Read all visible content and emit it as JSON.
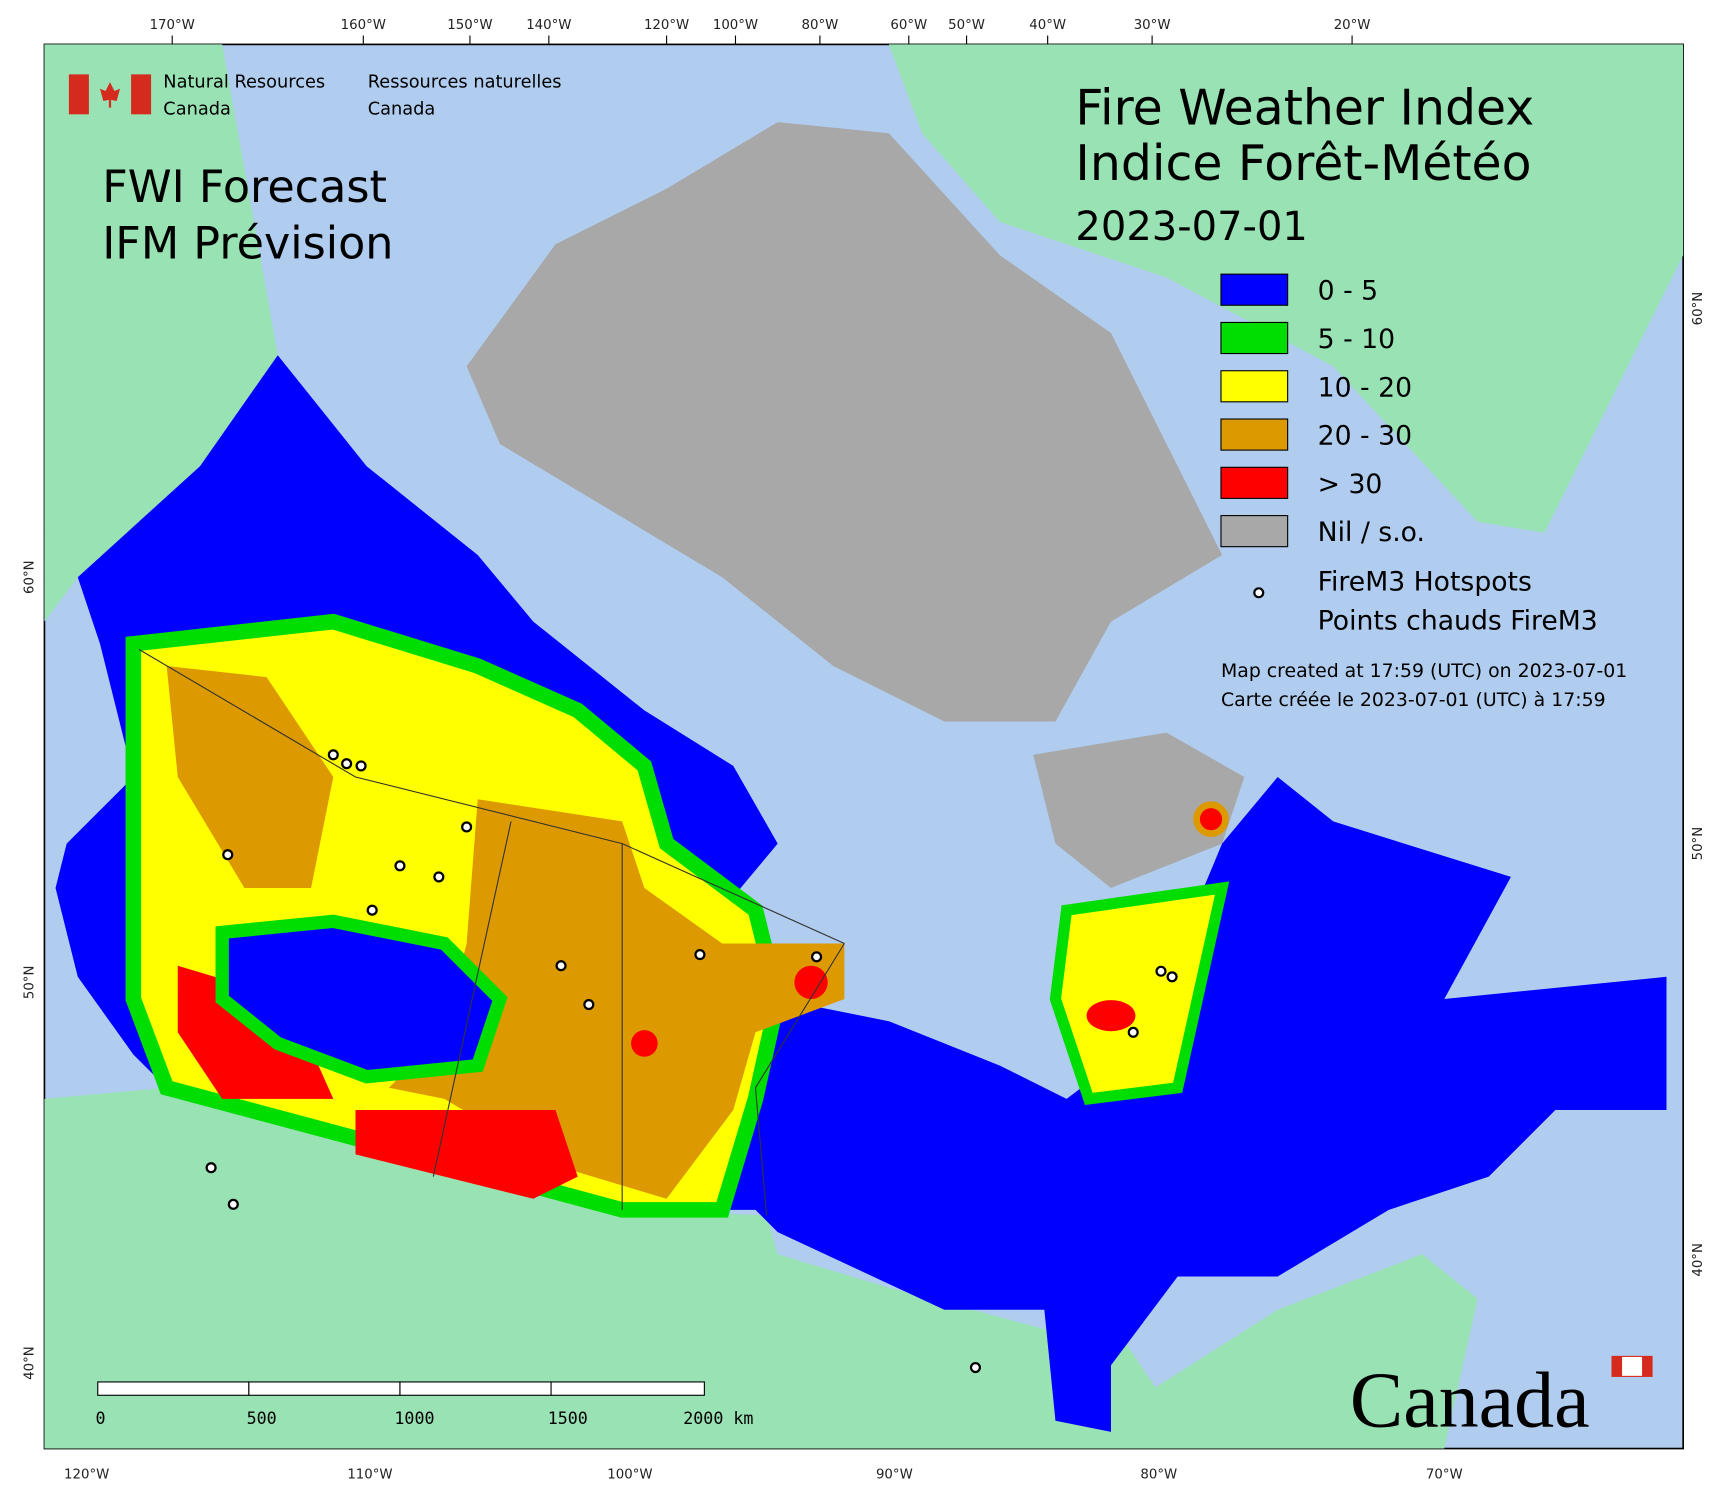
{
  "header": {
    "agency_en": [
      "Natural Resources",
      "Canada"
    ],
    "agency_fr": [
      "Ressources naturelles",
      "Canada"
    ],
    "product": [
      "FWI Forecast",
      "IFM Prévision"
    ],
    "title": [
      "Fire Weather Index",
      "Indice Forêt-Météo"
    ],
    "date": "2023-07-01"
  },
  "legend": {
    "items": [
      {
        "label": "0 - 5",
        "color": "#0000ff"
      },
      {
        "label": "5 - 10",
        "color": "#00dd00"
      },
      {
        "label": "10 - 20",
        "color": "#ffff00"
      },
      {
        "label": "20 - 30",
        "color": "#dd9900"
      },
      {
        "label": "> 30",
        "color": "#ff0000"
      },
      {
        "label": "Nil / s.o.",
        "color": "#a8a8a8"
      }
    ],
    "hotspots": [
      "FireM3 Hotspots",
      "Points chauds FireM3"
    ]
  },
  "notes": [
    "Map created at 17:59 (UTC) on 2023-07-01",
    "Carte créée le 2023-07-01 (UTC) à 17:59"
  ],
  "graticule": {
    "top": [
      "170°W",
      "160°W",
      "150°W",
      "140°W",
      "120°W",
      "100°W",
      "80°W",
      "60°W",
      "50°W",
      "40°W",
      "30°W",
      "20°W"
    ],
    "bottom": [
      "120°W",
      "110°W",
      "100°W",
      "90°W",
      "80°W",
      "70°W"
    ],
    "left": [
      "60°N",
      "50°N",
      "40°N"
    ],
    "right": [
      "60°N",
      "50°N",
      "40°N"
    ]
  },
  "scale_bar": [
    "0",
    "500",
    "1000",
    "1500",
    "2000 km"
  ],
  "wordmark": "Canada"
}
